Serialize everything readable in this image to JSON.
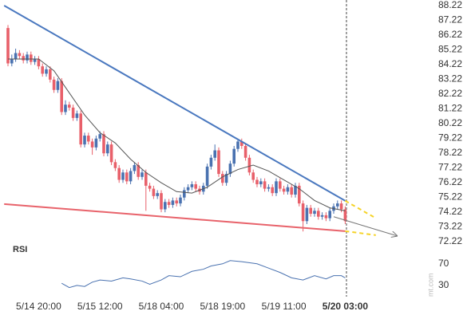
{
  "chart_data": [
    {
      "type": "candlestick",
      "categories": [
        null,
        null,
        null,
        null,
        null,
        null,
        null,
        null,
        "5/14 20:00",
        null,
        null,
        null,
        null,
        null,
        null,
        null,
        null,
        null,
        null,
        null,
        null,
        null,
        null,
        null,
        "5/15 12:00",
        null,
        null,
        null,
        null,
        null,
        null,
        null,
        null,
        null,
        null,
        null,
        null,
        null,
        null,
        null,
        "5/18 04:00",
        null,
        null,
        null,
        null,
        null,
        null,
        null,
        null,
        null,
        null,
        null,
        null,
        null,
        null,
        null,
        "5/18 19:00",
        null,
        null,
        null,
        null,
        null,
        null,
        null,
        null,
        null,
        null,
        null,
        null,
        null,
        null,
        null,
        "5/19 11:00",
        null,
        null,
        null,
        null,
        null,
        null,
        null,
        null,
        null,
        null,
        null,
        null,
        null,
        null,
        null,
        "5/20 03:00"
      ],
      "open": [
        86.7,
        84.3,
        84.6,
        85.0,
        84.8,
        84.5,
        84.9,
        84.4,
        84.6,
        84.1,
        83.6,
        83.9,
        83.2,
        82.5,
        83.1,
        81.0,
        81.5,
        81.3,
        80.6,
        80.9,
        78.8,
        79.4,
        79.0,
        78.6,
        79.2,
        79.5,
        78.2,
        78.8,
        77.6,
        77.2,
        76.4,
        76.9,
        76.3,
        77.0,
        77.4,
        76.6,
        76.9,
        76.0,
        75.8,
        75.3,
        75.5,
        74.4,
        74.9,
        74.7,
        75.0,
        74.8,
        75.2,
        75.7,
        75.9,
        76.1,
        75.8,
        75.6,
        76.0,
        77.3,
        77.9,
        78.4,
        76.8,
        76.2,
        76.8,
        77.5,
        78.5,
        79.0,
        78.7,
        77.9,
        76.9,
        76.4,
        76.1,
        76.3,
        75.8,
        75.9,
        75.5,
        76.3,
        75.8,
        75.6,
        75.9,
        75.4,
        76.0,
        74.8,
        73.6,
        74.5,
        74.1,
        74.3,
        73.9,
        74.0,
        73.8,
        74.3,
        74.6,
        74.8,
        74.4
      ],
      "high": [
        86.9,
        84.9,
        85.3,
        85.2,
        85.0,
        85.1,
        85.1,
        84.8,
        84.8,
        84.3,
        84.1,
        84.1,
        83.4,
        83.3,
        83.3,
        81.8,
        81.7,
        81.5,
        81.1,
        81.1,
        79.6,
        79.6,
        79.2,
        79.4,
        79.7,
        79.7,
        79.0,
        79.0,
        77.8,
        77.4,
        77.1,
        77.1,
        77.2,
        77.6,
        77.6,
        77.1,
        77.1,
        76.2,
        76.0,
        75.7,
        75.7,
        75.1,
        75.1,
        75.2,
        75.2,
        75.4,
        75.9,
        76.1,
        76.3,
        76.3,
        76.0,
        76.2,
        77.5,
        78.1,
        78.8,
        78.6,
        77.0,
        77.0,
        77.7,
        78.7,
        79.2,
        79.2,
        78.9,
        78.1,
        77.1,
        76.6,
        76.5,
        76.5,
        76.1,
        76.1,
        76.5,
        76.5,
        76.0,
        76.1,
        76.1,
        76.2,
        76.2,
        75.0,
        74.7,
        74.7,
        74.5,
        74.5,
        74.2,
        74.2,
        74.5,
        74.8,
        75.0,
        75.0,
        74.6
      ],
      "low": [
        84.1,
        84.1,
        84.4,
        84.6,
        84.3,
        84.3,
        84.2,
        84.2,
        83.9,
        83.4,
        83.4,
        83.0,
        82.3,
        82.3,
        80.8,
        80.8,
        81.1,
        80.4,
        80.4,
        78.6,
        78.6,
        78.8,
        78.1,
        78.4,
        79.0,
        78.0,
        78.0,
        77.4,
        77.0,
        76.2,
        76.2,
        76.1,
        76.1,
        76.8,
        76.4,
        76.4,
        74.3,
        75.6,
        75.1,
        75.1,
        74.2,
        74.2,
        74.5,
        74.5,
        74.6,
        74.6,
        75.0,
        75.5,
        75.7,
        75.6,
        75.4,
        75.4,
        75.8,
        77.1,
        77.7,
        76.6,
        76.0,
        76.0,
        76.6,
        77.3,
        78.3,
        78.5,
        77.7,
        76.7,
        76.2,
        75.9,
        75.9,
        75.6,
        75.6,
        75.3,
        75.3,
        75.6,
        75.4,
        75.4,
        75.2,
        75.2,
        74.6,
        72.9,
        73.4,
        73.9,
        73.9,
        73.7,
        73.7,
        73.6,
        73.6,
        74.1,
        74.4,
        74.2,
        73.4
      ],
      "close": [
        84.3,
        84.6,
        85.0,
        84.8,
        84.5,
        84.9,
        84.4,
        84.6,
        84.1,
        83.6,
        83.9,
        83.2,
        82.5,
        83.1,
        81.0,
        81.5,
        81.3,
        80.6,
        80.9,
        78.8,
        79.4,
        79.0,
        78.6,
        79.2,
        79.5,
        78.2,
        78.8,
        77.6,
        77.2,
        76.4,
        76.9,
        76.3,
        77.0,
        77.4,
        76.6,
        76.9,
        76.0,
        75.8,
        75.3,
        75.5,
        74.4,
        74.9,
        74.7,
        75.0,
        74.8,
        75.2,
        75.7,
        75.9,
        76.1,
        75.8,
        75.6,
        76.0,
        77.3,
        77.9,
        78.4,
        76.8,
        76.2,
        76.8,
        77.5,
        78.5,
        79.0,
        78.7,
        77.9,
        76.9,
        76.4,
        76.1,
        76.3,
        75.8,
        75.9,
        75.5,
        76.3,
        75.8,
        75.6,
        75.9,
        75.4,
        76.0,
        74.8,
        73.6,
        74.5,
        74.1,
        74.3,
        73.9,
        74.0,
        73.8,
        74.3,
        74.6,
        74.8,
        74.4,
        73.6
      ],
      "up_color": "#4a72b0",
      "down_color": "#e8606a",
      "ylim": [
        72.1,
        88.6
      ],
      "yticks": [
        88.22,
        87.22,
        86.22,
        85.22,
        84.22,
        83.22,
        82.22,
        81.22,
        80.22,
        79.22,
        78.22,
        77.22,
        76.22,
        75.22,
        74.22,
        73.22,
        72.22
      ],
      "lines": [
        {
          "x": [
            0,
            4,
            8,
            12,
            16,
            20,
            24,
            28,
            32,
            36,
            40,
            44,
            48,
            52,
            56,
            60,
            64,
            68,
            72,
            76,
            80,
            84,
            88
          ],
          "values": [
            84.6,
            84.6,
            84.6,
            83.8,
            82.3,
            80.8,
            79.6,
            78.9,
            77.8,
            76.9,
            76.2,
            75.6,
            75.5,
            75.9,
            76.6,
            77.1,
            77.4,
            77.0,
            76.4,
            75.8,
            75.0,
            74.5,
            74.3
          ],
          "color": "#555555"
        },
        {
          "x": [
            -1,
            88
          ],
          "values": [
            88.22,
            74.98
          ],
          "color": "#4a78bf"
        },
        {
          "x": [
            -1,
            88
          ],
          "values": [
            74.76,
            72.92
          ],
          "color": "#e8636b"
        },
        {
          "x": [
            88,
            96
          ],
          "values": [
            74.98,
            73.8
          ],
          "color": "#f5d327",
          "dashed": true
        },
        {
          "x": [
            88,
            96
          ],
          "values": [
            72.92,
            72.65
          ],
          "color": "#f5d327",
          "dashed": true
        },
        {
          "x": [
            85,
            101.5
          ],
          "values": [
            73.9,
            72.6
          ],
          "color": "#777777",
          "arrow": true
        }
      ]
    },
    {
      "type": "line",
      "title": "RSI",
      "x": [
        14,
        16,
        18,
        20,
        22,
        24,
        27,
        30,
        32,
        35,
        37,
        40,
        42,
        45,
        48,
        51,
        53,
        56,
        58,
        61,
        65,
        68,
        71,
        74,
        77,
        80,
        83,
        85,
        87,
        88
      ],
      "values": [
        34,
        26,
        30,
        28,
        36,
        40,
        38,
        44,
        42,
        38,
        32,
        40,
        48,
        46,
        56,
        60,
        66,
        70,
        76,
        74,
        70,
        62,
        54,
        44,
        40,
        48,
        42,
        48,
        48,
        44
      ],
      "color": "#4a72b0",
      "ylim": [
        15,
        83
      ],
      "yticks": [
        70,
        30
      ]
    }
  ],
  "watermark": "mt.com"
}
